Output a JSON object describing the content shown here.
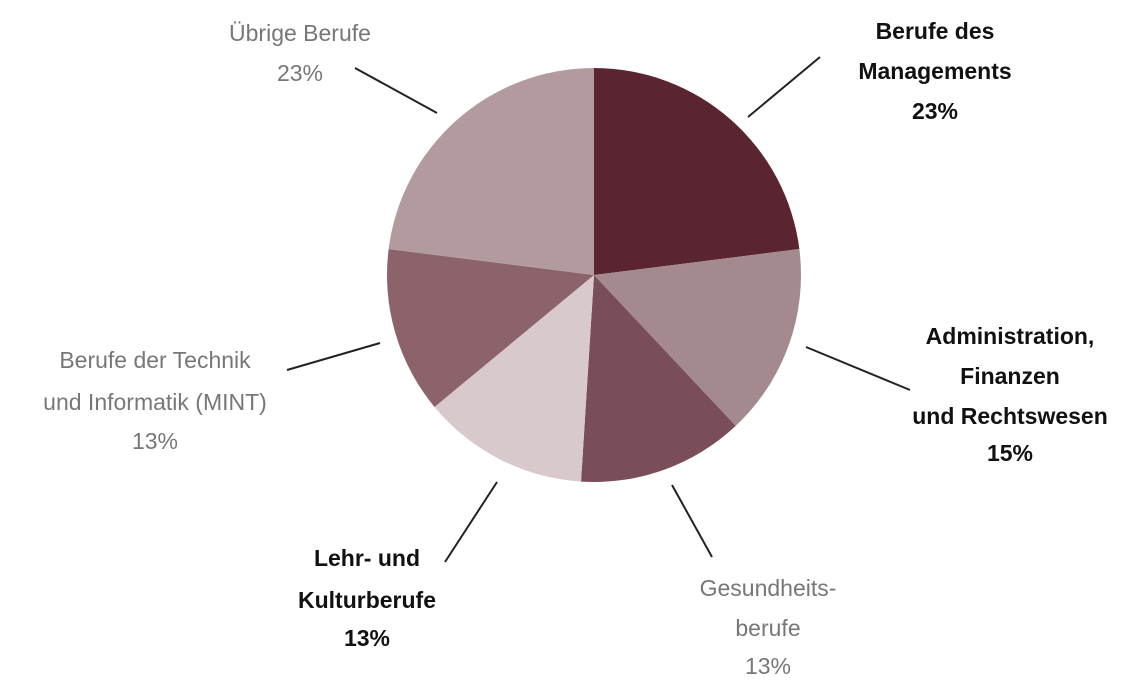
{
  "chart_data": {
    "type": "pie",
    "categories": [
      "Berufe des\nManagements",
      "Administration,\nFinanzen\nund Rechtswesen",
      "Gesundheits-\nberufe",
      "Lehr- und\nKulturberufe",
      "Berufe der Technik\nund Informatik (MINT)",
      "Übrige Berufe"
    ],
    "values": [
      23,
      15,
      13,
      13,
      13,
      23
    ],
    "value_labels": [
      "23%",
      "15%",
      "13%",
      "13%",
      "13%",
      "23%"
    ],
    "colors": [
      "#5a2430",
      "#a48a8e",
      "#7a4e58",
      "#d7c9cc",
      "#8c636b",
      "#b39a9e"
    ]
  }
}
